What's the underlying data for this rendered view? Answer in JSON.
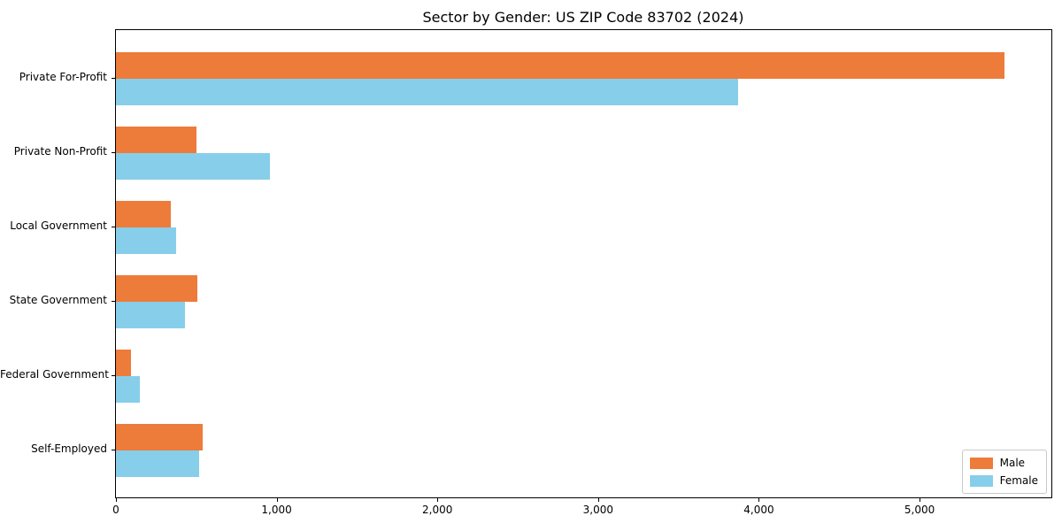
{
  "chart_data": {
    "type": "bar",
    "orientation": "horizontal",
    "title": "Sector by Gender: US ZIP Code 83702 (2024)",
    "categories": [
      "Private For-Profit",
      "Private Non-Profit",
      "Local Government",
      "State Government",
      "Federal Government",
      "Self-Employed"
    ],
    "series": [
      {
        "name": "Male",
        "color": "#ED7B3A",
        "values": [
          5530,
          500,
          340,
          505,
          95,
          540
        ]
      },
      {
        "name": "Female",
        "color": "#87CEEB",
        "values": [
          3870,
          960,
          375,
          430,
          150,
          520
        ]
      }
    ],
    "xlabel": "",
    "ylabel": "",
    "xlim": [
      0,
      5820
    ],
    "xticks": [
      0,
      1000,
      2000,
      3000,
      4000,
      5000
    ],
    "xtick_labels": [
      "0",
      "1,000",
      "2,000",
      "3,000",
      "4,000",
      "5,000"
    ],
    "grid": false,
    "background_color": "#ffffff",
    "axis_color": "#000000",
    "legend": {
      "position": "lower right",
      "entries": [
        {
          "label": "Male",
          "color": "#ED7B3A"
        },
        {
          "label": "Female",
          "color": "#87CEEB"
        }
      ]
    }
  }
}
